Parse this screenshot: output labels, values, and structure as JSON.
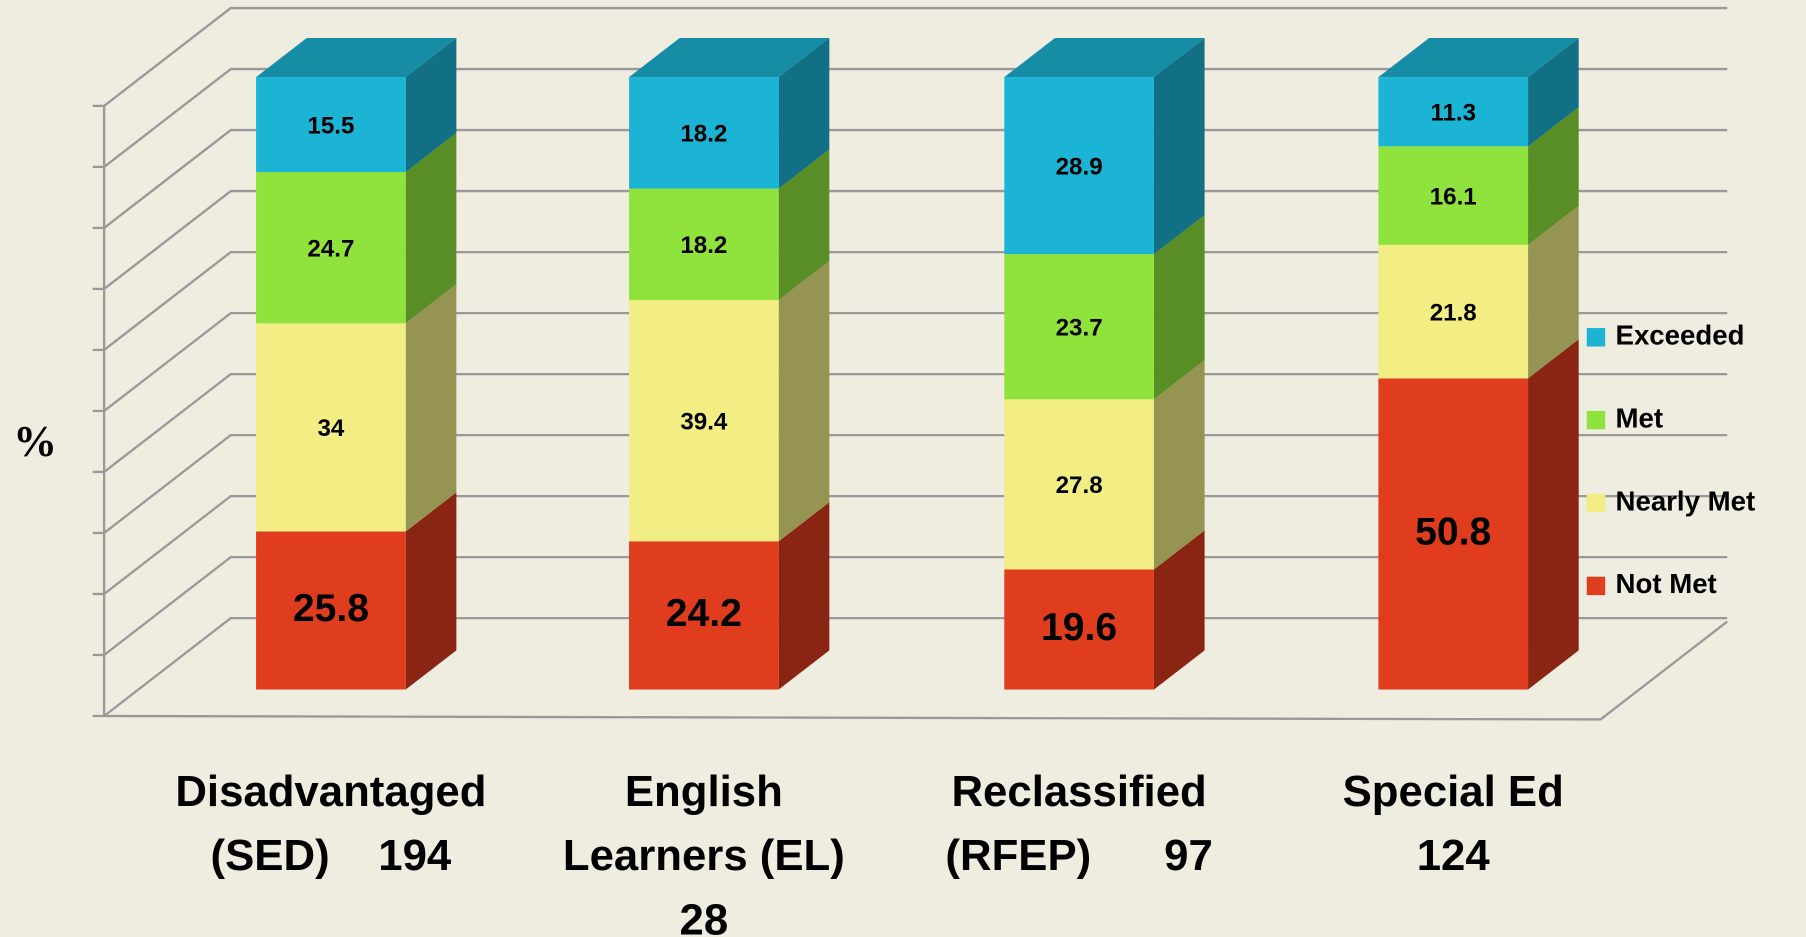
{
  "chart_data": {
    "type": "bar3d_stacked",
    "y_label": "%",
    "categories": [
      "Disadvantaged\n(SED)    194",
      "English\nLearners (EL)\n28",
      "Reclassified\n(RFEP)      97",
      "Special Ed\n124"
    ],
    "series": [
      {
        "name": "Not Met",
        "color": "#e03c1e",
        "values": [
          25.8,
          24.2,
          19.6,
          50.8
        ]
      },
      {
        "name": "Nearly Met",
        "color": "#f2ee84",
        "values": [
          34,
          39.4,
          27.8,
          21.8
        ]
      },
      {
        "name": "Met",
        "color": "#8fe33c",
        "values": [
          24.7,
          18.2,
          23.7,
          16.1
        ]
      },
      {
        "name": "Exceeded",
        "color": "#1cb4d4",
        "values": [
          15.5,
          18.2,
          28.9,
          11.3
        ]
      }
    ],
    "ylim": [
      0,
      100
    ],
    "yticks": [
      0,
      10,
      20,
      30,
      40,
      50,
      60,
      70,
      80,
      90,
      100
    ],
    "grid": true,
    "legend": "right"
  }
}
